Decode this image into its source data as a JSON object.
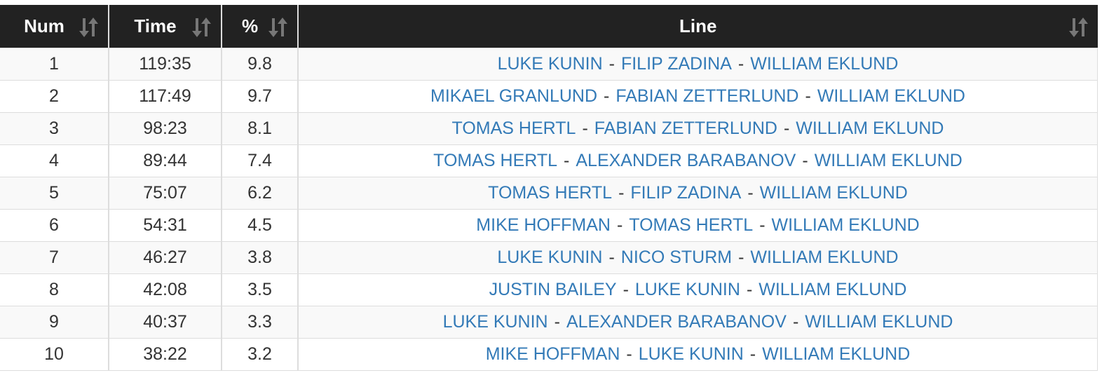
{
  "table": {
    "columns": [
      "Num",
      "Time",
      "%",
      "Line"
    ],
    "separator": "-",
    "rows": [
      {
        "num": 1,
        "time": "119:35",
        "percent": 9.8,
        "line": [
          "LUKE KUNIN",
          "FILIP ZADINA",
          "WILLIAM EKLUND"
        ]
      },
      {
        "num": 2,
        "time": "117:49",
        "percent": 9.7,
        "line": [
          "MIKAEL GRANLUND",
          "FABIAN ZETTERLUND",
          "WILLIAM EKLUND"
        ]
      },
      {
        "num": 3,
        "time": "98:23",
        "percent": 8.1,
        "line": [
          "TOMAS HERTL",
          "FABIAN ZETTERLUND",
          "WILLIAM EKLUND"
        ]
      },
      {
        "num": 4,
        "time": "89:44",
        "percent": 7.4,
        "line": [
          "TOMAS HERTL",
          "ALEXANDER BARABANOV",
          "WILLIAM EKLUND"
        ]
      },
      {
        "num": 5,
        "time": "75:07",
        "percent": 6.2,
        "line": [
          "TOMAS HERTL",
          "FILIP ZADINA",
          "WILLIAM EKLUND"
        ]
      },
      {
        "num": 6,
        "time": "54:31",
        "percent": 4.5,
        "line": [
          "MIKE HOFFMAN",
          "TOMAS HERTL",
          "WILLIAM EKLUND"
        ]
      },
      {
        "num": 7,
        "time": "46:27",
        "percent": 3.8,
        "line": [
          "LUKE KUNIN",
          "NICO STURM",
          "WILLIAM EKLUND"
        ]
      },
      {
        "num": 8,
        "time": "42:08",
        "percent": 3.5,
        "line": [
          "JUSTIN BAILEY",
          "LUKE KUNIN",
          "WILLIAM EKLUND"
        ]
      },
      {
        "num": 9,
        "time": "40:37",
        "percent": 3.3,
        "line": [
          "LUKE KUNIN",
          "ALEXANDER BARABANOV",
          "WILLIAM EKLUND"
        ]
      },
      {
        "num": 10,
        "time": "38:22",
        "percent": 3.2,
        "line": [
          "MIKE HOFFMAN",
          "LUKE KUNIN",
          "WILLIAM EKLUND"
        ]
      }
    ]
  }
}
